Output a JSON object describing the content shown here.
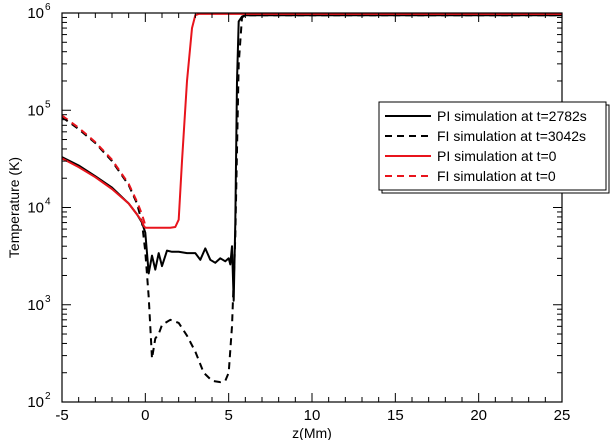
{
  "chart_data": {
    "type": "line",
    "title": "",
    "xlabel": "z(Mm)",
    "ylabel": "Temperature (K)",
    "xlim": [
      -5,
      25
    ],
    "ylim": [
      100,
      1000000
    ],
    "yscale": "log",
    "x_ticks": [
      "-5",
      "0",
      "5",
      "10",
      "15",
      "20",
      "25"
    ],
    "y_ticks": [
      {
        "base": "10",
        "exp": "2"
      },
      {
        "base": "10",
        "exp": "3"
      },
      {
        "base": "10",
        "exp": "4"
      },
      {
        "base": "10",
        "exp": "5"
      },
      {
        "base": "10",
        "exp": "6"
      }
    ],
    "legend_position": "right",
    "grid": false,
    "series": [
      {
        "name": "PI simulation at t=2782s",
        "color": "#000000",
        "dash": "solid",
        "x": [
          -5,
          -4,
          -3,
          -2,
          -1,
          -0.5,
          -0.2,
          0,
          0.2,
          0.4,
          0.6,
          0.8,
          1.0,
          1.3,
          1.6,
          2.0,
          2.5,
          3.0,
          3.3,
          3.6,
          3.9,
          4.2,
          4.5,
          4.8,
          5.0,
          5.1,
          5.2,
          5.3,
          5.4,
          5.5,
          5.6,
          5.8,
          6.0,
          8,
          10,
          15,
          20,
          25
        ],
        "y": [
          33000,
          27000,
          21000,
          16000,
          11000,
          8500,
          7000,
          5500,
          2100,
          3200,
          2300,
          3400,
          2500,
          3600,
          3500,
          3500,
          3400,
          3400,
          2900,
          3800,
          2900,
          2700,
          3000,
          2800,
          3000,
          2600,
          4000,
          1100,
          7000,
          200000,
          820000,
          920000,
          950000,
          950000,
          950000,
          950000,
          950000,
          950000
        ]
      },
      {
        "name": "FI simulation at t=3042s",
        "color": "#000000",
        "dash": "dashed",
        "x": [
          -5,
          -4,
          -3,
          -2,
          -1,
          -0.5,
          -0.2,
          0,
          0.2,
          0.4,
          0.6,
          0.8,
          1.0,
          1.5,
          2.0,
          2.5,
          3.0,
          3.5,
          4.0,
          4.5,
          4.8,
          5.0,
          5.2,
          5.4,
          5.6,
          5.8,
          6.0,
          8,
          10,
          15,
          20,
          25
        ],
        "y": [
          85000,
          64000,
          46000,
          30000,
          17000,
          11000,
          7000,
          3500,
          1200,
          280,
          450,
          500,
          620,
          700,
          650,
          480,
          330,
          200,
          165,
          160,
          165,
          200,
          600,
          5000,
          300000,
          900000,
          950000,
          950000,
          950000,
          950000,
          950000,
          950000
        ]
      },
      {
        "name": "PI simulation at t=0",
        "color": "#e8141c",
        "dash": "solid",
        "x": [
          -5,
          -4,
          -3,
          -2,
          -1,
          -0.5,
          -0.2,
          -0.1,
          0,
          0.5,
          1.0,
          1.5,
          1.8,
          2.0,
          2.2,
          2.5,
          2.8,
          3.0,
          3.2,
          4,
          6,
          10,
          15,
          20,
          25
        ],
        "y": [
          32000,
          26000,
          20500,
          15500,
          11000,
          8500,
          7200,
          6500,
          6200,
          6200,
          6200,
          6200,
          6300,
          7500,
          30000,
          200000,
          700000,
          950000,
          980000,
          980000,
          980000,
          980000,
          980000,
          980000,
          980000
        ]
      },
      {
        "name": "FI simulation at t=0",
        "color": "#e8141c",
        "dash": "dashed",
        "x": [
          -5,
          -4,
          -3,
          -2,
          -1,
          -0.5,
          -0.2,
          -0.05,
          0
        ],
        "y": [
          88000,
          66000,
          47000,
          31000,
          17500,
          11500,
          8500,
          7000,
          6200
        ]
      }
    ]
  }
}
